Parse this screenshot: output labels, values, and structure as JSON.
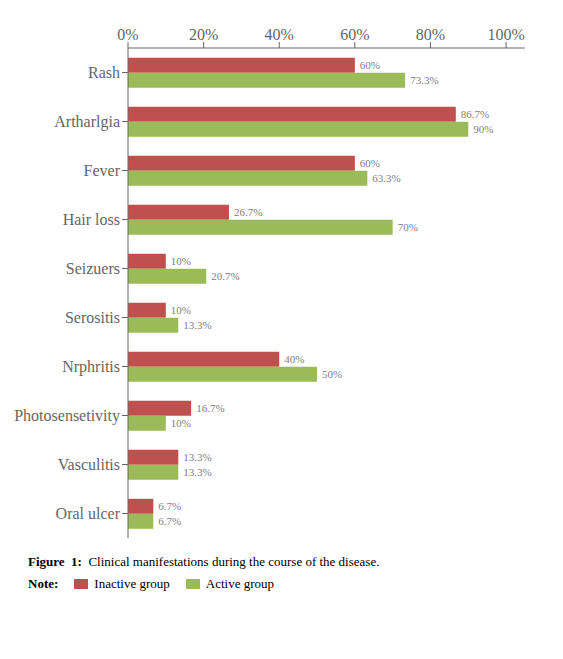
{
  "chart_data": {
    "type": "bar",
    "orientation": "horizontal",
    "categories": [
      "Rash",
      "Artharlgia",
      "Fever",
      "Hair loss",
      "Seizuers",
      "Serositis",
      "Nrphritis",
      "Photosensetivity",
      "Vasculitis",
      "Oral ulcer"
    ],
    "series": [
      {
        "name": "Inactive group",
        "color": "#C0504D",
        "values": [
          60,
          86.7,
          60,
          26.7,
          10,
          10,
          40,
          16.7,
          13.3,
          6.7
        ],
        "value_labels": [
          "60%",
          "86.7%",
          "60%",
          "26.7%",
          "10%",
          "10%",
          "40%",
          "16.7%",
          "13.3%",
          "6.7%"
        ]
      },
      {
        "name": "Active group",
        "color": "#9BBB59",
        "values": [
          73.3,
          90,
          63.3,
          70,
          20.7,
          13.3,
          50,
          10,
          13.3,
          6.7
        ],
        "value_labels": [
          "73.3%",
          "90%",
          "63.3%",
          "70%",
          "20.7%",
          "13.3%",
          "50%",
          "10%",
          "13.3%",
          "6.7%"
        ]
      }
    ],
    "xlim": [
      0,
      105
    ],
    "xticks": [
      {
        "value": 0,
        "label": "0%"
      },
      {
        "value": 20,
        "label": "20%"
      },
      {
        "value": 40,
        "label": "40%"
      },
      {
        "value": 60,
        "label": "60%"
      },
      {
        "value": 80,
        "label": "80%"
      },
      {
        "value": 100,
        "label": "100%"
      }
    ],
    "grid": false,
    "legend": "bottom",
    "data_labels": true,
    "annotations": [
      "Figure  1:",
      "  Clinical manifestations during the course of the disease.",
      "Note:"
    ]
  }
}
